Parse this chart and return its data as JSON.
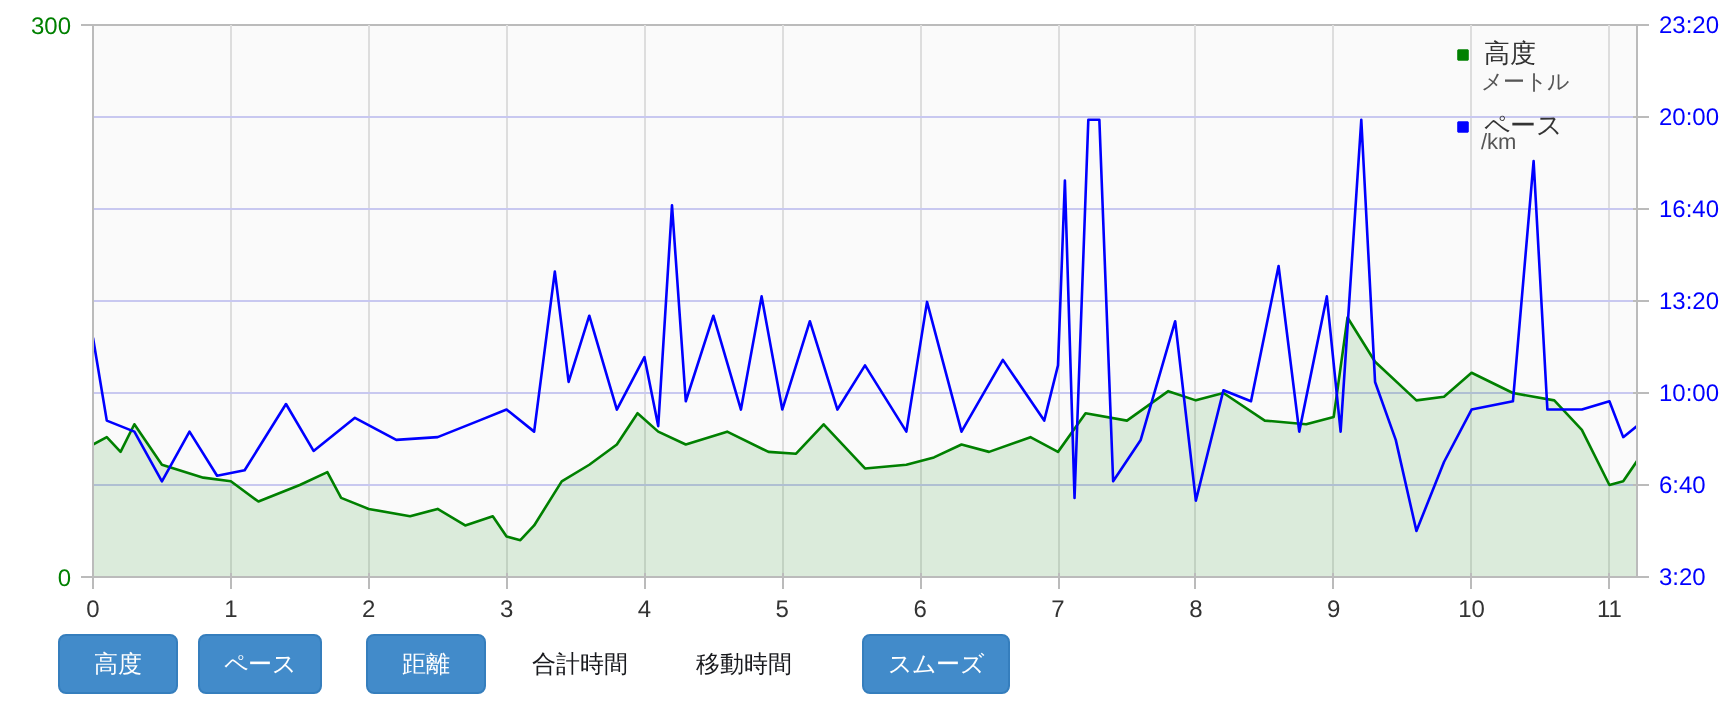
{
  "chart_data": {
    "type": "line",
    "xlim": [
      0,
      11.2
    ],
    "xticks": [
      0,
      1,
      2,
      3,
      4,
      5,
      6,
      7,
      8,
      9,
      10,
      11
    ],
    "ylim": [
      0,
      300
    ],
    "yticks": [
      0,
      300
    ],
    "y2lim": [
      3.333,
      23.333
    ],
    "y2ticks": [
      {
        "value": 3.333,
        "label": "3:20"
      },
      {
        "value": 6.667,
        "label": "6:40"
      },
      {
        "value": 10,
        "label": "10:00"
      },
      {
        "value": 13.333,
        "label": "13:20"
      },
      {
        "value": 16.667,
        "label": "16:40"
      },
      {
        "value": 20,
        "label": "20:00"
      },
      {
        "value": 23.333,
        "label": "23:20"
      }
    ],
    "grid": true,
    "legend": "top right",
    "annotations": [
      "メートル",
      "/km",
      "高度",
      "ペース",
      "距離",
      "合計時間",
      "移動時間",
      "スムーズ"
    ],
    "series": [
      {
        "name": "高度",
        "color": "#008000",
        "type": "area",
        "x": [
          0,
          0.1,
          0.2,
          0.3,
          0.5,
          0.8,
          1.0,
          1.2,
          1.5,
          1.7,
          1.8,
          2.0,
          2.3,
          2.5,
          2.7,
          2.9,
          3.0,
          3.1,
          3.2,
          3.4,
          3.6,
          3.8,
          3.95,
          4.1,
          4.3,
          4.6,
          4.9,
          5.1,
          5.3,
          5.6,
          5.9,
          6.1,
          6.3,
          6.5,
          6.8,
          7.0,
          7.2,
          7.5,
          7.8,
          8.0,
          8.2,
          8.5,
          8.8,
          9.0,
          9.1,
          9.3,
          9.6,
          9.8,
          10.0,
          10.3,
          10.6,
          10.8,
          11.0,
          11.1,
          11.2
        ],
        "values": [
          72,
          76,
          68,
          83,
          61,
          54,
          52,
          41,
          50,
          57,
          43,
          37,
          33,
          37,
          28,
          33,
          22,
          20,
          28,
          52,
          61,
          72,
          89,
          79,
          72,
          79,
          68,
          67,
          83,
          59,
          61,
          65,
          72,
          68,
          76,
          68,
          89,
          85,
          101,
          96,
          100,
          85,
          83,
          87,
          141,
          117,
          96,
          98,
          111,
          100,
          96,
          80,
          50,
          52,
          63
        ]
      },
      {
        "name": "ペース",
        "color": "#0000ff",
        "axis": "y2",
        "x": [
          0,
          0.1,
          0.3,
          0.5,
          0.7,
          0.9,
          1.1,
          1.4,
          1.6,
          1.9,
          2.2,
          2.5,
          2.8,
          3.0,
          3.2,
          3.35,
          3.45,
          3.6,
          3.8,
          4.0,
          4.1,
          4.2,
          4.3,
          4.5,
          4.7,
          4.85,
          5.0,
          5.2,
          5.4,
          5.6,
          5.9,
          6.05,
          6.3,
          6.6,
          6.9,
          7.0,
          7.05,
          7.12,
          7.22,
          7.3,
          7.4,
          7.6,
          7.85,
          8.0,
          8.2,
          8.4,
          8.6,
          8.75,
          8.95,
          9.05,
          9.2,
          9.3,
          9.45,
          9.6,
          9.8,
          10.0,
          10.3,
          10.45,
          10.55,
          10.8,
          11.0,
          11.1,
          11.2
        ],
        "values": [
          12.0,
          9.0,
          8.6,
          6.8,
          8.6,
          7.0,
          7.2,
          9.6,
          7.9,
          9.1,
          8.3,
          8.4,
          9.0,
          9.4,
          8.6,
          14.4,
          10.4,
          12.8,
          9.4,
          11.3,
          8.8,
          16.8,
          9.7,
          12.8,
          9.4,
          13.5,
          9.4,
          12.6,
          9.4,
          11.0,
          8.6,
          13.3,
          8.6,
          11.2,
          9.0,
          11.0,
          17.7,
          6.2,
          19.9,
          19.9,
          6.8,
          8.3,
          12.6,
          6.1,
          10.1,
          9.7,
          14.6,
          8.6,
          13.5,
          8.6,
          19.9,
          10.4,
          8.3,
          5.0,
          7.5,
          9.4,
          9.7,
          18.4,
          9.4,
          9.4,
          9.7,
          8.4,
          8.8
        ]
      }
    ]
  }
}
